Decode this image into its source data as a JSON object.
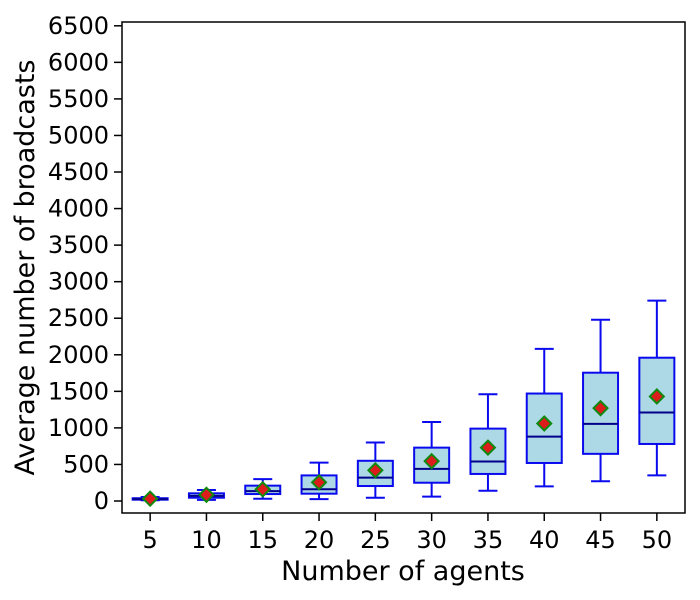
{
  "figure": {
    "background": "#ffffff"
  },
  "chart_data": {
    "type": "boxplot",
    "title": "",
    "xlabel": "Number of agents",
    "ylabel": "Average number of broadcasts",
    "grid": false,
    "legend": null,
    "categories": [
      "5",
      "10",
      "15",
      "20",
      "25",
      "30",
      "35",
      "40",
      "45",
      "50"
    ],
    "y_ticks": [
      0,
      500,
      1000,
      1500,
      2000,
      2500,
      3000,
      3500,
      4000,
      4500,
      5000,
      5500,
      6000,
      6500
    ],
    "ylim": [
      -165,
      6500
    ],
    "boxes": [
      {
        "category": "5",
        "whislo": 10,
        "q1": 18,
        "med": 25,
        "mean": 32,
        "q3": 38,
        "whishi": 55
      },
      {
        "category": "10",
        "whislo": 15,
        "q1": 45,
        "med": 70,
        "mean": 85,
        "q3": 105,
        "whishi": 150
      },
      {
        "category": "15",
        "whislo": 30,
        "q1": 95,
        "med": 135,
        "mean": 160,
        "q3": 210,
        "whishi": 300
      },
      {
        "category": "20",
        "whislo": 25,
        "q1": 100,
        "med": 160,
        "mean": 255,
        "q3": 350,
        "whishi": 525
      },
      {
        "category": "25",
        "whislo": 45,
        "q1": 205,
        "med": 320,
        "mean": 420,
        "q3": 550,
        "whishi": 800
      },
      {
        "category": "30",
        "whislo": 60,
        "q1": 250,
        "med": 440,
        "mean": 545,
        "q3": 730,
        "whishi": 1080
      },
      {
        "category": "35",
        "whislo": 140,
        "q1": 370,
        "med": 540,
        "mean": 730,
        "q3": 990,
        "whishi": 1460
      },
      {
        "category": "40",
        "whislo": 200,
        "q1": 520,
        "med": 880,
        "mean": 1060,
        "q3": 1470,
        "whishi": 2080
      },
      {
        "category": "45",
        "whislo": 270,
        "q1": 645,
        "med": 1055,
        "mean": 1270,
        "q3": 1755,
        "whishi": 2480
      },
      {
        "category": "50",
        "whislo": 350,
        "q1": 780,
        "med": 1210,
        "mean": 1430,
        "q3": 1960,
        "whishi": 2740
      }
    ],
    "style": {
      "box_fill": "#add8e6",
      "box_edge": "#0a0aee",
      "whisker_color": "#0a0aee",
      "median_color": "#00008b",
      "mean_marker": "diamond",
      "mean_fill": "#dd1c1c",
      "mean_edge": "#0f8a0f",
      "spine_color": "#000000",
      "tick_color": "#000000"
    }
  }
}
